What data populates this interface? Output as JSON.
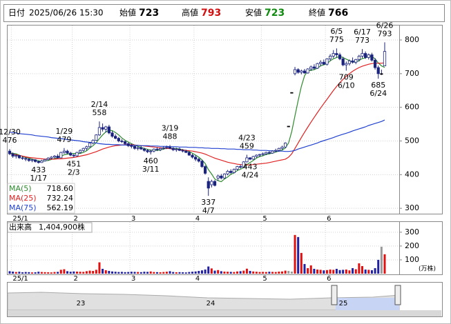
{
  "header": {
    "date_label": "日付",
    "date": "2025/06/26 15:30",
    "items": [
      {
        "label": "始値",
        "value": 723,
        "color": "#000000"
      },
      {
        "label": "高値",
        "value": 793,
        "color": "#d01010"
      },
      {
        "label": "安値",
        "value": 723,
        "color": "#108a10"
      },
      {
        "label": "終値",
        "value": 766,
        "color": "#000000"
      }
    ]
  },
  "chart_data": {
    "type": "candlestick",
    "categories": [
      null,
      "25/1",
      null,
      null,
      null,
      null,
      null,
      null,
      null,
      null,
      null,
      null,
      null,
      null,
      null,
      null,
      null,
      null,
      null,
      null,
      "2",
      null,
      null,
      null,
      null,
      null,
      null,
      null,
      null,
      null,
      null,
      null,
      null,
      null,
      null,
      null,
      null,
      null,
      "3",
      null,
      null,
      null,
      null,
      null,
      null,
      null,
      null,
      null,
      null,
      null,
      null,
      null,
      null,
      null,
      null,
      null,
      null,
      null,
      "4",
      null,
      null,
      null,
      null,
      null,
      null,
      null,
      null,
      null,
      null,
      null,
      null,
      null,
      null,
      null,
      null,
      null,
      null,
      null,
      null,
      "5",
      null,
      null,
      null,
      null,
      null,
      null,
      null,
      null,
      null,
      null,
      null,
      null,
      null,
      null,
      null,
      null,
      null,
      null,
      null,
      "6",
      null,
      null,
      null,
      null,
      null,
      null,
      null,
      null,
      null,
      null,
      null,
      null,
      null,
      null,
      null,
      null,
      null,
      null
    ],
    "open": [
      470,
      462,
      455,
      457,
      450,
      448,
      446,
      442,
      444,
      439,
      436,
      441,
      445,
      449,
      452,
      455,
      450,
      466,
      470,
      464,
      458,
      456,
      466,
      472,
      478,
      483,
      494,
      502,
      518,
      540,
      535,
      542,
      524,
      514,
      508,
      500,
      498,
      492,
      486,
      484,
      478,
      480,
      476,
      472,
      468,
      470,
      476,
      474,
      478,
      480,
      482,
      478,
      474,
      476,
      472,
      470,
      466,
      458,
      452,
      446,
      440,
      424,
      380,
      370,
      380,
      390,
      396,
      390,
      402,
      410,
      406,
      416,
      424,
      422,
      438,
      450,
      446,
      454,
      458,
      460,
      462,
      466,
      464,
      470,
      472,
      478,
      482,
      544,
      644,
      700,
      712,
      704,
      708,
      702,
      714,
      720,
      716,
      730,
      734,
      728,
      744,
      752,
      760,
      756,
      744,
      726,
      730,
      738,
      734,
      742,
      752,
      760,
      748,
      756,
      740,
      718,
      700,
      723
    ],
    "high": [
      476,
      466,
      461,
      458,
      455,
      452,
      449,
      447,
      446,
      442,
      444,
      447,
      452,
      455,
      458,
      461,
      468,
      479,
      474,
      468,
      461,
      468,
      475,
      480,
      486,
      496,
      505,
      520,
      558,
      552,
      545,
      548,
      530,
      520,
      512,
      506,
      502,
      496,
      492,
      487,
      484,
      486,
      480,
      476,
      474,
      478,
      482,
      480,
      484,
      486,
      488,
      482,
      480,
      480,
      476,
      474,
      470,
      462,
      458,
      450,
      444,
      428,
      392,
      385,
      384,
      400,
      402,
      404,
      414,
      416,
      418,
      426,
      430,
      440,
      459,
      452,
      456,
      460,
      462,
      466,
      468,
      470,
      472,
      477,
      480,
      486,
      496,
      544,
      644,
      720,
      716,
      712,
      714,
      716,
      724,
      728,
      732,
      740,
      742,
      746,
      758,
      770,
      775,
      762,
      750,
      736,
      742,
      748,
      744,
      756,
      773,
      766,
      760,
      762,
      746,
      724,
      712,
      793
    ],
    "low": [
      458,
      450,
      448,
      447,
      444,
      440,
      438,
      437,
      436,
      433,
      435,
      439,
      442,
      446,
      449,
      448,
      449,
      462,
      461,
      455,
      451,
      454,
      463,
      468,
      472,
      480,
      490,
      500,
      515,
      528,
      525,
      520,
      510,
      505,
      496,
      494,
      489,
      482,
      478,
      474,
      472,
      474,
      468,
      464,
      460,
      466,
      470,
      470,
      474,
      476,
      476,
      470,
      468,
      470,
      466,
      464,
      456,
      448,
      440,
      436,
      420,
      400,
      337,
      362,
      365,
      382,
      386,
      388,
      398,
      402,
      404,
      412,
      418,
      420,
      436,
      443,
      444,
      450,
      452,
      456,
      458,
      461,
      462,
      466,
      468,
      474,
      480,
      544,
      644,
      695,
      700,
      698,
      700,
      700,
      708,
      712,
      714,
      722,
      726,
      724,
      738,
      746,
      748,
      740,
      722,
      709,
      724,
      730,
      728,
      736,
      746,
      744,
      742,
      736,
      712,
      685,
      696,
      723
    ],
    "close": [
      462,
      455,
      457,
      450,
      448,
      446,
      442,
      444,
      439,
      436,
      441,
      445,
      449,
      452,
      455,
      450,
      466,
      470,
      464,
      458,
      456,
      466,
      472,
      478,
      483,
      494,
      502,
      518,
      540,
      535,
      542,
      524,
      514,
      508,
      500,
      498,
      492,
      486,
      484,
      478,
      480,
      476,
      472,
      468,
      470,
      476,
      474,
      478,
      480,
      482,
      478,
      474,
      476,
      472,
      470,
      466,
      458,
      452,
      446,
      440,
      424,
      404,
      360,
      380,
      368,
      396,
      390,
      402,
      410,
      406,
      416,
      424,
      422,
      438,
      450,
      446,
      454,
      458,
      460,
      462,
      466,
      464,
      470,
      472,
      478,
      482,
      494,
      544,
      644,
      712,
      704,
      708,
      702,
      714,
      720,
      716,
      730,
      734,
      728,
      744,
      752,
      760,
      756,
      744,
      726,
      730,
      738,
      734,
      742,
      752,
      760,
      748,
      756,
      740,
      718,
      700,
      700,
      766
    ],
    "up_color": "#ffffff",
    "down_color": "#1a237e",
    "outline_color": "#1a237e",
    "series": [
      {
        "name": "MA(5)",
        "color": "#2e8b2e",
        "current": {
          "value": 718.6,
          "label": "718.60"
        },
        "values": [
          465,
          463,
          462,
          458,
          454,
          451,
          449,
          446,
          444,
          441,
          440,
          441,
          442,
          445,
          448,
          450,
          454,
          459,
          461,
          462,
          463,
          463,
          463,
          466,
          471,
          479,
          486,
          495,
          507,
          518,
          527,
          532,
          531,
          525,
          518,
          509,
          502,
          497,
          492,
          488,
          484,
          481,
          478,
          475,
          473,
          472,
          472,
          473,
          476,
          478,
          478,
          478,
          478,
          476,
          474,
          472,
          468,
          464,
          458,
          452,
          444,
          433,
          415,
          402,
          387,
          382,
          379,
          387,
          393,
          401,
          405,
          412,
          416,
          421,
          430,
          436,
          442,
          449,
          454,
          456,
          460,
          462,
          464,
          467,
          470,
          473,
          479,
          494,
          528,
          575,
          620,
          662,
          694,
          708,
          710,
          712,
          716,
          723,
          726,
          730,
          738,
          744,
          748,
          751,
          748,
          743,
          739,
          734,
          734,
          739,
          745,
          747,
          752,
          751,
          744,
          732,
          723,
          718.6
        ]
      },
      {
        "name": "MA(25)",
        "color": "#e02020",
        "current": {
          "value": 732.24,
          "label": "732.24"
        },
        "values": [
          463,
          461,
          459,
          457,
          455,
          453,
          451,
          450,
          449,
          448,
          447,
          446,
          446,
          446,
          446,
          447,
          447,
          448,
          449,
          450,
          451,
          453,
          455,
          457,
          459,
          462,
          465,
          468,
          472,
          476,
          479,
          482,
          484,
          486,
          487,
          488,
          489,
          489,
          489,
          488,
          487,
          486,
          485,
          484,
          483,
          482,
          481,
          480,
          479,
          478,
          477,
          476,
          475,
          474,
          473,
          472,
          471,
          470,
          468,
          466,
          464,
          461,
          457,
          453,
          449,
          446,
          443,
          440,
          437,
          435,
          433,
          431,
          430,
          429,
          429,
          429,
          430,
          431,
          432,
          433,
          434,
          436,
          438,
          440,
          442,
          444,
          446,
          452,
          462,
          478,
          494,
          510,
          526,
          541,
          556,
          570,
          584,
          598,
          611,
          624,
          637,
          650,
          662,
          673,
          683,
          692,
          700,
          707,
          713,
          718,
          722,
          725,
          728,
          730,
          731,
          731,
          731,
          732.24
        ]
      },
      {
        "name": "MA(75)",
        "color": "#2040d0",
        "current": {
          "value": 562.19,
          "label": "562.19"
        },
        "values": [
          526,
          525,
          524,
          522,
          521,
          520,
          519,
          518,
          516,
          515,
          514,
          513,
          512,
          510,
          509,
          508,
          507,
          506,
          504,
          503,
          502,
          501,
          500,
          498,
          497,
          496,
          495,
          494,
          492,
          491,
          490,
          490,
          489,
          489,
          489,
          488,
          488,
          488,
          487,
          487,
          487,
          486,
          486,
          486,
          485,
          485,
          485,
          484,
          484,
          484,
          483,
          483,
          483,
          482,
          482,
          482,
          481,
          481,
          481,
          480,
          480,
          479,
          479,
          478,
          478,
          478,
          477,
          477,
          476,
          476,
          476,
          475,
          475,
          474,
          474,
          474,
          473,
          473,
          472,
          472,
          472,
          471,
          471,
          470,
          470,
          470,
          469,
          469,
          470,
          472,
          476,
          479,
          482,
          485,
          488,
          491,
          494,
          498,
          501,
          504,
          507,
          510,
          514,
          517,
          520,
          523,
          526,
          530,
          533,
          536,
          539,
          542,
          546,
          549,
          552,
          555,
          558,
          562.19
        ]
      }
    ],
    "annotations": [
      {
        "date": "12/30",
        "value": 476
      },
      {
        "date": "1/17",
        "value": 433
      },
      {
        "date": "1/29",
        "value": 479
      },
      {
        "date": "2/3",
        "value": 451
      },
      {
        "date": "2/14",
        "value": 558
      },
      {
        "date": "3/11",
        "value": 460
      },
      {
        "date": "3/19",
        "value": 488
      },
      {
        "date": "4/7",
        "value": 337
      },
      {
        "date": "4/23",
        "value": 459
      },
      {
        "date": "4/24",
        "value": 443
      },
      {
        "date": "6/5",
        "value": 775
      },
      {
        "date": "6/10",
        "value": 709
      },
      {
        "date": "6/17",
        "value": 773
      },
      {
        "date": "6/24",
        "value": 685
      },
      {
        "date": "6/26",
        "value": 793
      }
    ],
    "ylim": [
      284,
      843
    ],
    "yticks": [
      300,
      400,
      500,
      600,
      700,
      800
    ],
    "grid": true,
    "volume": {
      "title": "出来高",
      "current": {
        "value": 140.49,
        "label": "1,404,900株"
      },
      "unit": "(万株)",
      "up_color": "#e01010",
      "down_color": "#2020a0",
      "flat_color": "#999999",
      "values": [
        18,
        15,
        12,
        14,
        10,
        12,
        11,
        9,
        10,
        14,
        12,
        11,
        10,
        9,
        12,
        13,
        28,
        32,
        18,
        14,
        16,
        15,
        14,
        13,
        18,
        22,
        20,
        28,
        82,
        35,
        25,
        20,
        16,
        14,
        12,
        13,
        11,
        12,
        14,
        13,
        12,
        11,
        14,
        13,
        16,
        12,
        11,
        10,
        12,
        14,
        18,
        12,
        10,
        11,
        10,
        9,
        12,
        14,
        16,
        20,
        24,
        30,
        52,
        38,
        22,
        26,
        18,
        15,
        14,
        13,
        12,
        16,
        18,
        22,
        36,
        20,
        16,
        14,
        12,
        13,
        12,
        14,
        13,
        12,
        15,
        16,
        22,
        20,
        15,
        280,
        265,
        150,
        70,
        40,
        60,
        35,
        30,
        28,
        24,
        26,
        30,
        28,
        35,
        26,
        28,
        30,
        24,
        40,
        32,
        75,
        55,
        30,
        28,
        25,
        40,
        100,
        195,
        140.49
      ],
      "ylim": [
        0,
        374
      ],
      "yticks": [
        100,
        200,
        300
      ]
    }
  },
  "navigator": {
    "labels": [
      "23",
      "24",
      "25"
    ]
  }
}
